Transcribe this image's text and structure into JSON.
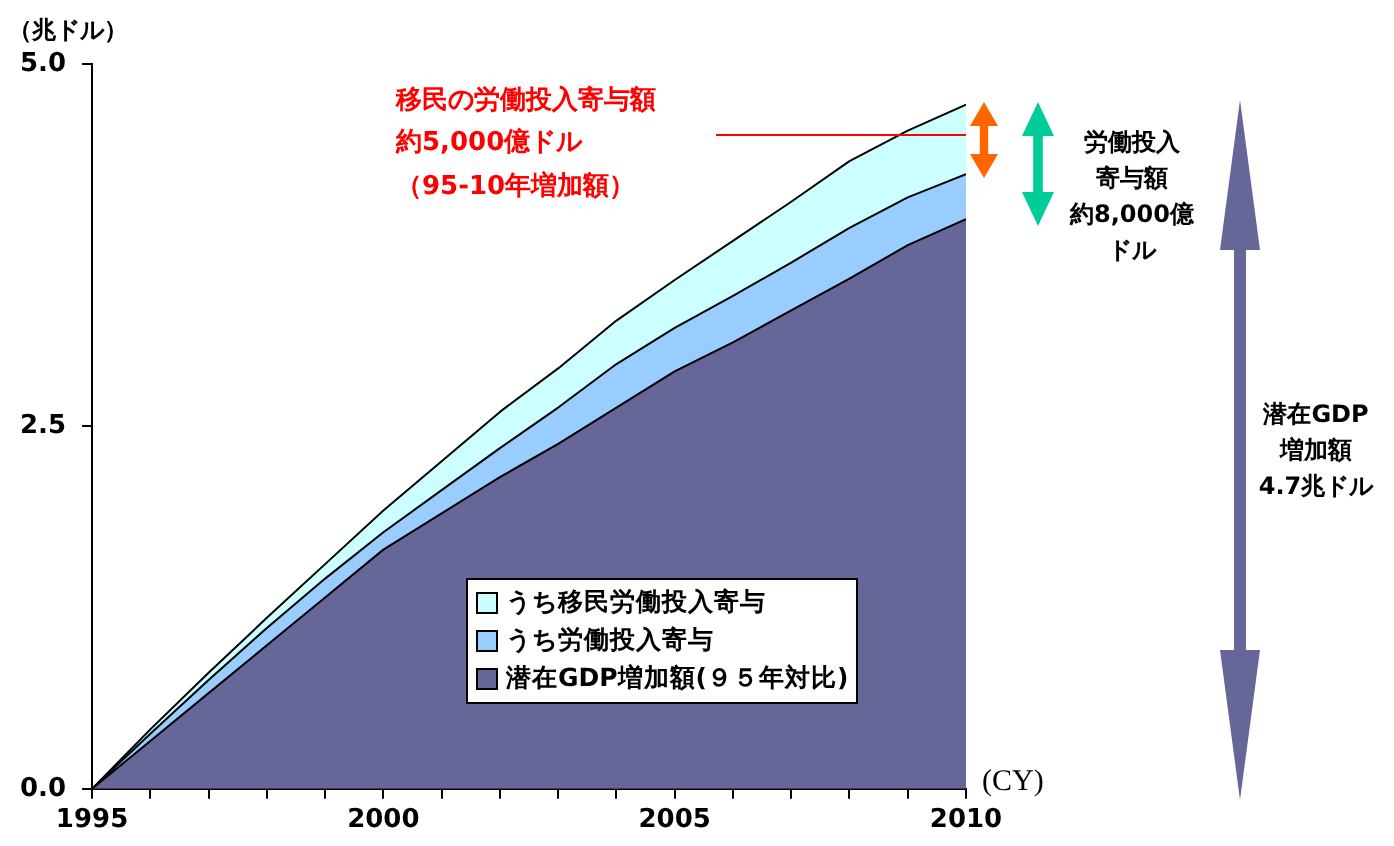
{
  "chart_data": {
    "type": "area",
    "stacked": true,
    "ylabel": "（兆ドル）",
    "xlabel": "(CY)",
    "x": [
      1995,
      1996,
      1997,
      1998,
      1999,
      2000,
      2001,
      2002,
      2003,
      2004,
      2005,
      2006,
      2007,
      2008,
      2009,
      2010
    ],
    "xlim": [
      1995,
      2010
    ],
    "xticks": [
      1995,
      {
        "value": 1996,
        "label": null
      },
      {
        "value": 1997,
        "label": null
      },
      {
        "value": 1998,
        "label": null
      },
      {
        "value": 1999,
        "label": null
      },
      2000,
      {
        "value": 2001,
        "label": null
      },
      {
        "value": 2002,
        "label": null
      },
      {
        "value": 2003,
        "label": null
      },
      {
        "value": 2004,
        "label": null
      },
      2005,
      {
        "value": 2006,
        "label": null
      },
      {
        "value": 2007,
        "label": null
      },
      {
        "value": 2008,
        "label": null
      },
      {
        "value": 2009,
        "label": null
      },
      2010
    ],
    "ylim": [
      0,
      5
    ],
    "yticks": [
      {
        "value": 0,
        "label": "0.0"
      },
      {
        "value": 2.5,
        "label": "2.5"
      },
      {
        "value": 5,
        "label": "5.0"
      }
    ],
    "grid": false,
    "legend": "bottom right",
    "series": [
      {
        "name": "潜在GDP増加額(９５年対比)",
        "color": "#666699",
        "values": [
          0,
          0.33,
          0.66,
          0.99,
          1.32,
          1.65,
          1.9,
          2.15,
          2.38,
          2.63,
          2.88,
          3.08,
          3.3,
          3.52,
          3.75,
          3.93
        ]
      },
      {
        "name": "うち労働投入寄与",
        "color": "#99ccff",
        "values": [
          0,
          0.05,
          0.09,
          0.12,
          0.13,
          0.12,
          0.16,
          0.2,
          0.25,
          0.3,
          0.3,
          0.32,
          0.33,
          0.35,
          0.33,
          0.31
        ]
      },
      {
        "name": "うち移民労働投入寄与",
        "color": "#ccffff",
        "values": [
          0,
          0.03,
          0.05,
          0.07,
          0.1,
          0.15,
          0.2,
          0.25,
          0.27,
          0.3,
          0.33,
          0.38,
          0.42,
          0.46,
          0.46,
          0.48
        ]
      }
    ],
    "annotations": [
      "移民の労働投入寄与額",
      "約5,000億ドル",
      "（95-10年増加額）",
      "労働投入",
      "寄与額",
      "約8,000億",
      "ドル",
      "潜在GDP",
      "増加額",
      "4.7兆ドル"
    ]
  }
}
